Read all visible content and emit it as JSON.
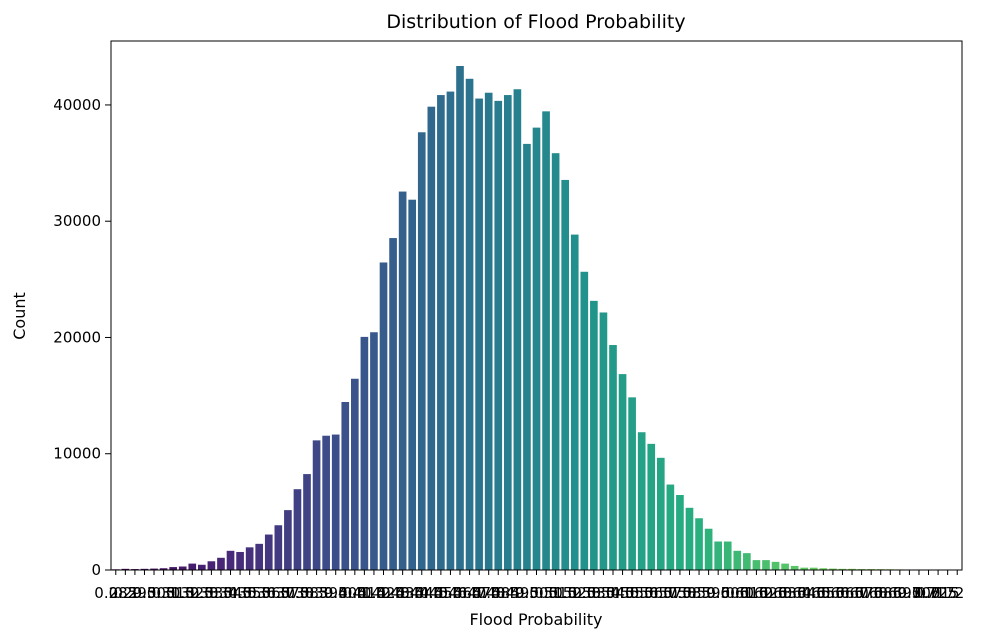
{
  "chart_data": {
    "type": "bar",
    "title": "Distribution of Flood Probability",
    "xlabel": "Flood Probability",
    "ylabel": "Count",
    "ylim": [
      0,
      45500
    ],
    "yticks": [
      0,
      10000,
      20000,
      30000,
      40000
    ],
    "grid": false,
    "legend": "none",
    "palette": "viridis",
    "categories": [
      "0.285",
      "0.29",
      "0.295",
      "0.3",
      "0.305",
      "0.31",
      "0.315",
      "0.32",
      "0.325",
      "0.33",
      "0.335",
      "0.34",
      "0.345",
      "0.35",
      "0.355",
      "0.36",
      "0.365",
      "0.37",
      "0.375",
      "0.38",
      "0.385",
      "0.39",
      "0.395",
      "0.4",
      "0.405",
      "0.41",
      "0.415",
      "0.42",
      "0.425",
      "0.43",
      "0.435",
      "0.44",
      "0.445",
      "0.45",
      "0.455",
      "0.46",
      "0.465",
      "0.47",
      "0.475",
      "0.48",
      "0.485",
      "0.49",
      "0.495",
      "0.5",
      "0.505",
      "0.51",
      "0.515",
      "0.52",
      "0.525",
      "0.53",
      "0.535",
      "0.54",
      "0.545",
      "0.55",
      "0.555",
      "0.56",
      "0.565",
      "0.57",
      "0.575",
      "0.58",
      "0.585",
      "0.59",
      "0.595",
      "0.6",
      "0.605",
      "0.61",
      "0.615",
      "0.62",
      "0.625",
      "0.63",
      "0.635",
      "0.64",
      "0.645",
      "0.65",
      "0.655",
      "0.66",
      "0.665",
      "0.67",
      "0.675",
      "0.68",
      "0.685",
      "0.69",
      "0.695",
      "0.7",
      "0.705",
      "0.71",
      "0.715",
      "0.72",
      "0.725"
    ],
    "values": [
      60,
      100,
      80,
      100,
      120,
      150,
      250,
      300,
      550,
      450,
      750,
      1050,
      1650,
      1550,
      1950,
      2250,
      3050,
      3850,
      5150,
      6950,
      8250,
      11150,
      11550,
      11650,
      14450,
      16450,
      20050,
      20450,
      26450,
      28550,
      32550,
      31850,
      37650,
      39850,
      40850,
      41150,
      43350,
      42250,
      40550,
      41050,
      40350,
      40850,
      41350,
      36650,
      38050,
      39450,
      35850,
      33550,
      28850,
      25650,
      23150,
      22150,
      19350,
      16850,
      14850,
      11850,
      10850,
      9650,
      7350,
      6450,
      5350,
      4450,
      3550,
      2450,
      2450,
      1650,
      1450,
      850,
      850,
      700,
      550,
      350,
      200,
      200,
      150,
      120,
      100,
      100,
      80,
      80,
      70,
      60,
      50,
      40,
      30,
      20,
      20,
      10,
      10
    ],
    "xtick_labels": [
      "0.285",
      "0.29",
      "0.295",
      "0.3",
      "0.305",
      "0.31",
      "0.315",
      "0.32",
      "0.325",
      "0.33",
      "0.335",
      "0.34",
      "0.345",
      "0.35",
      "0.355",
      "0.36",
      "0.365",
      "0.37",
      "0.375",
      "0.38",
      "0.385",
      "0.39",
      "0.395",
      "0.4",
      "0.405",
      "0.41",
      "0.415",
      "0.42",
      "0.425",
      "0.43",
      "0.435",
      "0.44",
      "0.445",
      "0.45",
      "0.455",
      "0.46",
      "0.465",
      "0.47",
      "0.475",
      "0.48",
      "0.485",
      "0.49",
      "0.495",
      "0.5",
      "0.505",
      "0.51",
      "0.515",
      "0.52",
      "0.525",
      "0.53",
      "0.535",
      "0.54",
      "0.545",
      "0.55",
      "0.555",
      "0.56",
      "0.565",
      "0.57",
      "0.575",
      "0.58",
      "0.585",
      "0.59",
      "0.595",
      "0.6",
      "0.605",
      "0.61",
      "0.615",
      "0.62",
      "0.625",
      "0.63",
      "0.635",
      "0.64",
      "0.645",
      "0.65",
      "0.655",
      "0.66",
      "0.665",
      "0.67",
      "0.675",
      "0.68",
      "0.685",
      "0.69",
      "0.695",
      "0.7",
      "0.705",
      "0.71",
      "0.715",
      "0.72",
      "0.725"
    ]
  }
}
